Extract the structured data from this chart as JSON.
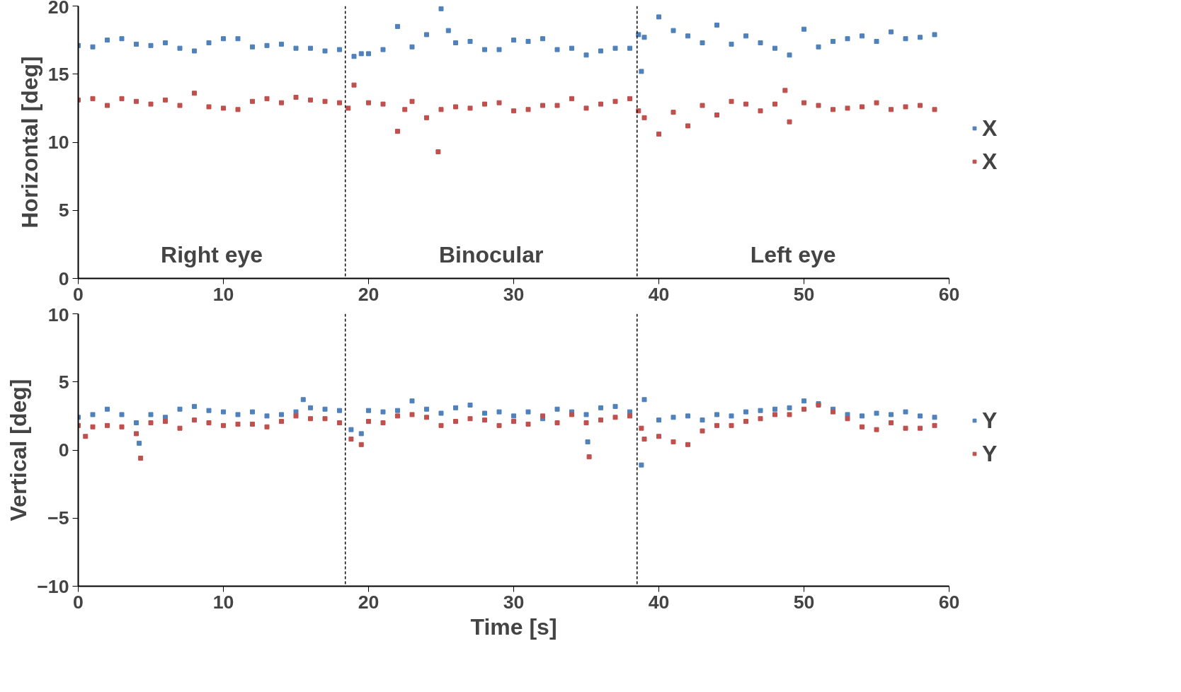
{
  "chart_data": [
    {
      "type": "scatter",
      "ylabel": "Horizontal [deg]",
      "marker": "square",
      "legend": "right",
      "grid": false,
      "xlim": [
        0,
        60
      ],
      "xticks": [
        0,
        10,
        20,
        30,
        40,
        50,
        60
      ],
      "ylim": [
        0,
        20
      ],
      "yticks": [
        0,
        5,
        10,
        15,
        20
      ],
      "ref_lines": [
        {
          "axis": "x",
          "value": 18.4,
          "line_style": "dashed",
          "color": "#000000"
        },
        {
          "axis": "x",
          "value": 38.5,
          "line_style": "dashed",
          "color": "#000000"
        }
      ],
      "annotations": [
        "Right eye",
        "Binocular",
        "Left eye"
      ],
      "series": [
        {
          "name": "X",
          "color": "#4f81bd",
          "x": [
            0,
            1,
            2,
            3,
            4,
            5,
            6,
            7,
            8,
            9,
            10,
            11,
            12,
            13,
            14,
            15,
            16,
            17,
            18,
            19,
            19.5,
            20,
            21,
            22,
            23,
            24,
            25,
            25.5,
            26,
            27,
            28,
            29,
            30,
            31,
            32,
            33,
            34,
            35,
            36,
            37,
            38,
            38.6,
            38.8,
            39,
            40,
            41,
            42,
            43,
            44,
            45,
            46,
            47,
            48,
            49,
            50,
            51,
            52,
            53,
            54,
            55,
            56,
            57,
            58,
            59
          ],
          "values": [
            17.1,
            17.0,
            17.5,
            17.6,
            17.2,
            17.1,
            17.3,
            16.9,
            16.7,
            17.3,
            17.6,
            17.6,
            17.0,
            17.1,
            17.2,
            16.9,
            16.9,
            16.7,
            16.8,
            16.3,
            16.5,
            16.5,
            16.8,
            18.5,
            17.0,
            17.9,
            19.8,
            18.2,
            17.3,
            17.4,
            16.8,
            16.8,
            17.5,
            17.4,
            17.6,
            16.8,
            16.9,
            16.4,
            16.7,
            16.9,
            16.9,
            17.9,
            15.2,
            17.7,
            19.2,
            18.2,
            17.8,
            17.3,
            18.6,
            17.2,
            17.8,
            17.3,
            16.9,
            16.4,
            18.3,
            17.0,
            17.4,
            17.6,
            17.8,
            17.4,
            18.1,
            17.6,
            17.7,
            17.9
          ]
        },
        {
          "name": "X",
          "color": "#c0504d",
          "x": [
            0,
            1,
            2,
            3,
            4,
            5,
            6,
            7,
            8,
            9,
            10,
            11,
            12,
            13,
            14,
            15,
            16,
            17,
            18,
            18.6,
            19,
            20,
            21,
            22,
            22.5,
            23,
            24,
            24.8,
            25,
            26,
            27,
            28,
            29,
            30,
            31,
            32,
            33,
            34,
            35,
            36,
            37,
            38,
            38.6,
            39,
            40,
            41,
            42,
            43,
            44,
            45,
            46,
            47,
            48,
            48.7,
            49,
            50,
            51,
            52,
            53,
            54,
            55,
            56,
            57,
            58,
            59
          ],
          "values": [
            13.1,
            13.2,
            12.7,
            13.2,
            13.0,
            12.8,
            13.1,
            12.7,
            13.6,
            12.6,
            12.5,
            12.4,
            13.0,
            13.2,
            12.9,
            13.3,
            13.1,
            13.0,
            12.9,
            12.5,
            14.2,
            12.9,
            12.8,
            10.8,
            12.4,
            13.0,
            11.8,
            9.3,
            12.4,
            12.6,
            12.5,
            12.8,
            12.9,
            12.3,
            12.4,
            12.7,
            12.7,
            13.2,
            12.5,
            12.8,
            13.0,
            13.2,
            12.3,
            11.8,
            10.6,
            12.2,
            11.2,
            12.7,
            12.0,
            13.0,
            12.8,
            12.3,
            12.8,
            13.8,
            11.5,
            12.9,
            12.7,
            12.4,
            12.5,
            12.6,
            12.9,
            12.4,
            12.6,
            12.7,
            12.4
          ]
        }
      ]
    },
    {
      "type": "scatter",
      "ylabel": "Vertical [deg]",
      "xlabel": "Time [s]",
      "marker": "square",
      "legend": "right",
      "grid": false,
      "xlim": [
        0,
        60
      ],
      "xticks": [
        0,
        10,
        20,
        30,
        40,
        50,
        60
      ],
      "ylim": [
        -10,
        10
      ],
      "yticks": [
        -10,
        -5,
        0,
        5,
        10
      ],
      "ref_lines": [
        {
          "axis": "x",
          "value": 18.4,
          "line_style": "dashed",
          "color": "#000000"
        },
        {
          "axis": "x",
          "value": 38.5,
          "line_style": "dashed",
          "color": "#000000"
        }
      ],
      "series": [
        {
          "name": "Y",
          "color": "#4f81bd",
          "x": [
            0,
            1,
            2,
            3,
            4,
            4.2,
            5,
            6,
            7,
            8,
            9,
            10,
            11,
            12,
            13,
            14,
            15,
            15.5,
            16,
            17,
            18,
            18.8,
            19.5,
            20,
            21,
            22,
            23,
            24,
            25,
            26,
            27,
            28,
            29,
            30,
            31,
            32,
            33,
            34,
            35,
            35.1,
            36,
            37,
            38,
            38.8,
            39,
            40,
            41,
            42,
            43,
            44,
            45,
            46,
            47,
            48,
            49,
            50,
            51,
            52,
            53,
            54,
            55,
            56,
            57,
            58,
            59
          ],
          "values": [
            2.4,
            2.6,
            3.0,
            2.6,
            2.0,
            0.5,
            2.6,
            2.4,
            3.0,
            3.2,
            2.9,
            2.8,
            2.6,
            2.8,
            2.5,
            2.6,
            2.8,
            3.7,
            3.1,
            3.0,
            2.9,
            1.5,
            1.2,
            2.9,
            2.8,
            2.9,
            3.6,
            3.0,
            2.7,
            3.1,
            3.3,
            2.7,
            2.8,
            2.5,
            2.8,
            2.3,
            3.0,
            2.8,
            2.6,
            0.6,
            3.1,
            3.2,
            2.8,
            -1.1,
            3.7,
            2.2,
            2.4,
            2.5,
            2.2,
            2.6,
            2.5,
            2.8,
            2.9,
            3.0,
            3.1,
            3.6,
            3.4,
            3.0,
            2.6,
            2.5,
            2.7,
            2.6,
            2.8,
            2.5,
            2.4
          ]
        },
        {
          "name": "Y",
          "color": "#c0504d",
          "x": [
            0,
            0.5,
            1,
            2,
            3,
            4,
            4.3,
            5,
            6,
            7,
            8,
            9,
            10,
            11,
            12,
            13,
            14,
            15,
            16,
            17,
            18,
            18.8,
            19.5,
            20,
            21,
            22,
            23,
            24,
            25,
            26,
            27,
            28,
            29,
            30,
            31,
            32,
            33,
            34,
            35,
            35.2,
            36,
            37,
            38,
            38.8,
            39,
            40,
            41,
            42,
            43,
            44,
            45,
            46,
            47,
            48,
            49,
            50,
            51,
            52,
            53,
            54,
            55,
            56,
            57,
            58,
            59
          ],
          "values": [
            1.8,
            1.0,
            1.7,
            1.8,
            1.7,
            1.2,
            -0.6,
            2.0,
            2.1,
            1.6,
            2.2,
            2.0,
            1.8,
            1.9,
            1.9,
            1.7,
            2.1,
            2.5,
            2.3,
            2.3,
            2.0,
            0.8,
            0.4,
            2.1,
            2.0,
            2.5,
            2.6,
            2.4,
            1.8,
            2.1,
            2.3,
            2.2,
            1.8,
            2.1,
            1.9,
            2.5,
            2.0,
            2.6,
            2.0,
            -0.5,
            2.2,
            2.4,
            2.5,
            1.6,
            0.8,
            1.0,
            0.6,
            0.4,
            1.4,
            1.8,
            1.8,
            2.1,
            2.3,
            2.6,
            2.6,
            3.0,
            3.3,
            2.8,
            2.3,
            1.7,
            1.5,
            2.0,
            1.6,
            1.6,
            1.8
          ]
        }
      ]
    }
  ]
}
